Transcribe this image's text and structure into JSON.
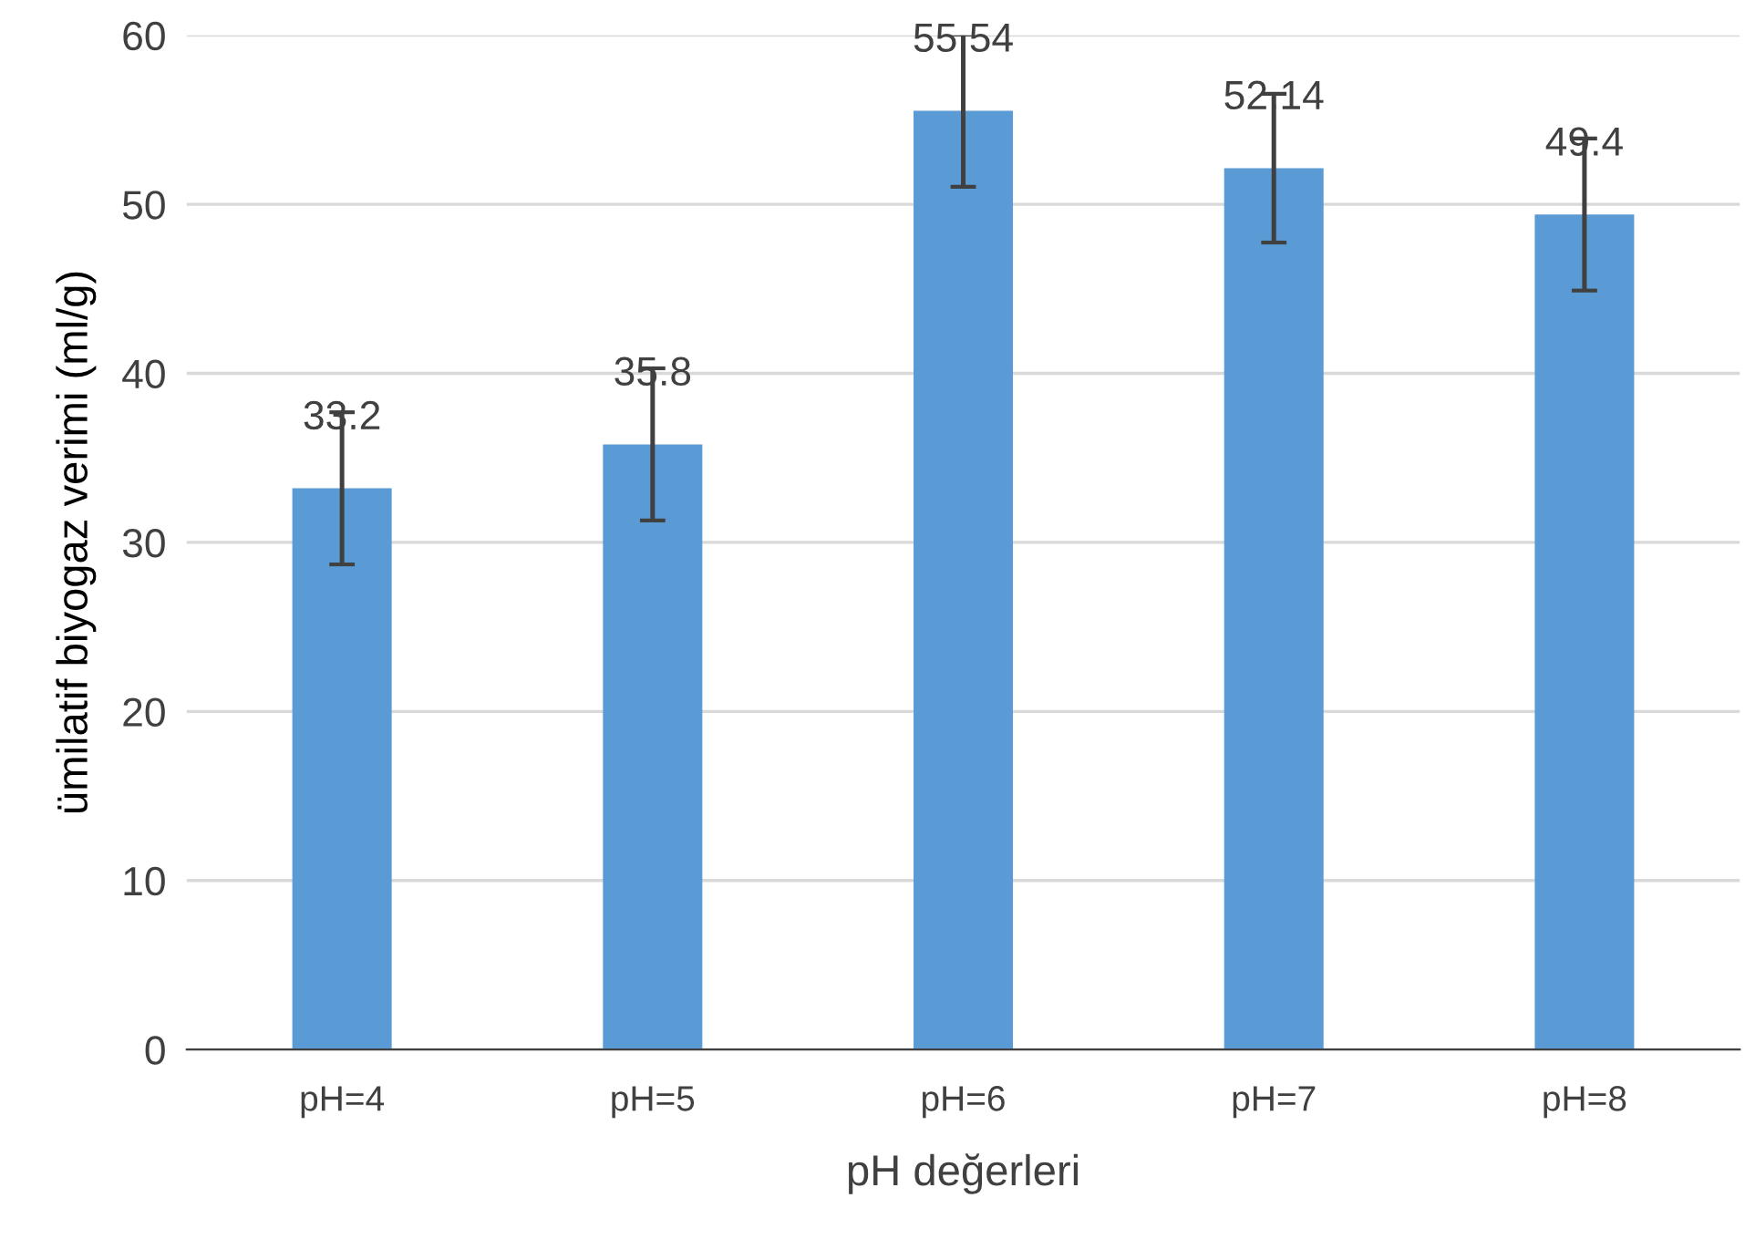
{
  "chart_data": {
    "type": "bar",
    "xlabel": "pH değerleri",
    "ylabel": "ümilatif biyogaz verimi (ml/g)",
    "categories": [
      "pH=4",
      "pH=5",
      "pH=6",
      "pH=7",
      "pH=8"
    ],
    "values": [
      33.2,
      35.8,
      55.54,
      52.14,
      49.4
    ],
    "errors": [
      4.5,
      4.5,
      4.5,
      4.4,
      4.5
    ],
    "color": "#5b9bd5",
    "ylim": [
      0,
      60
    ],
    "yticks": [
      0,
      10,
      20,
      30,
      40,
      50,
      60
    ],
    "grid": "y",
    "data_labels": true
  }
}
